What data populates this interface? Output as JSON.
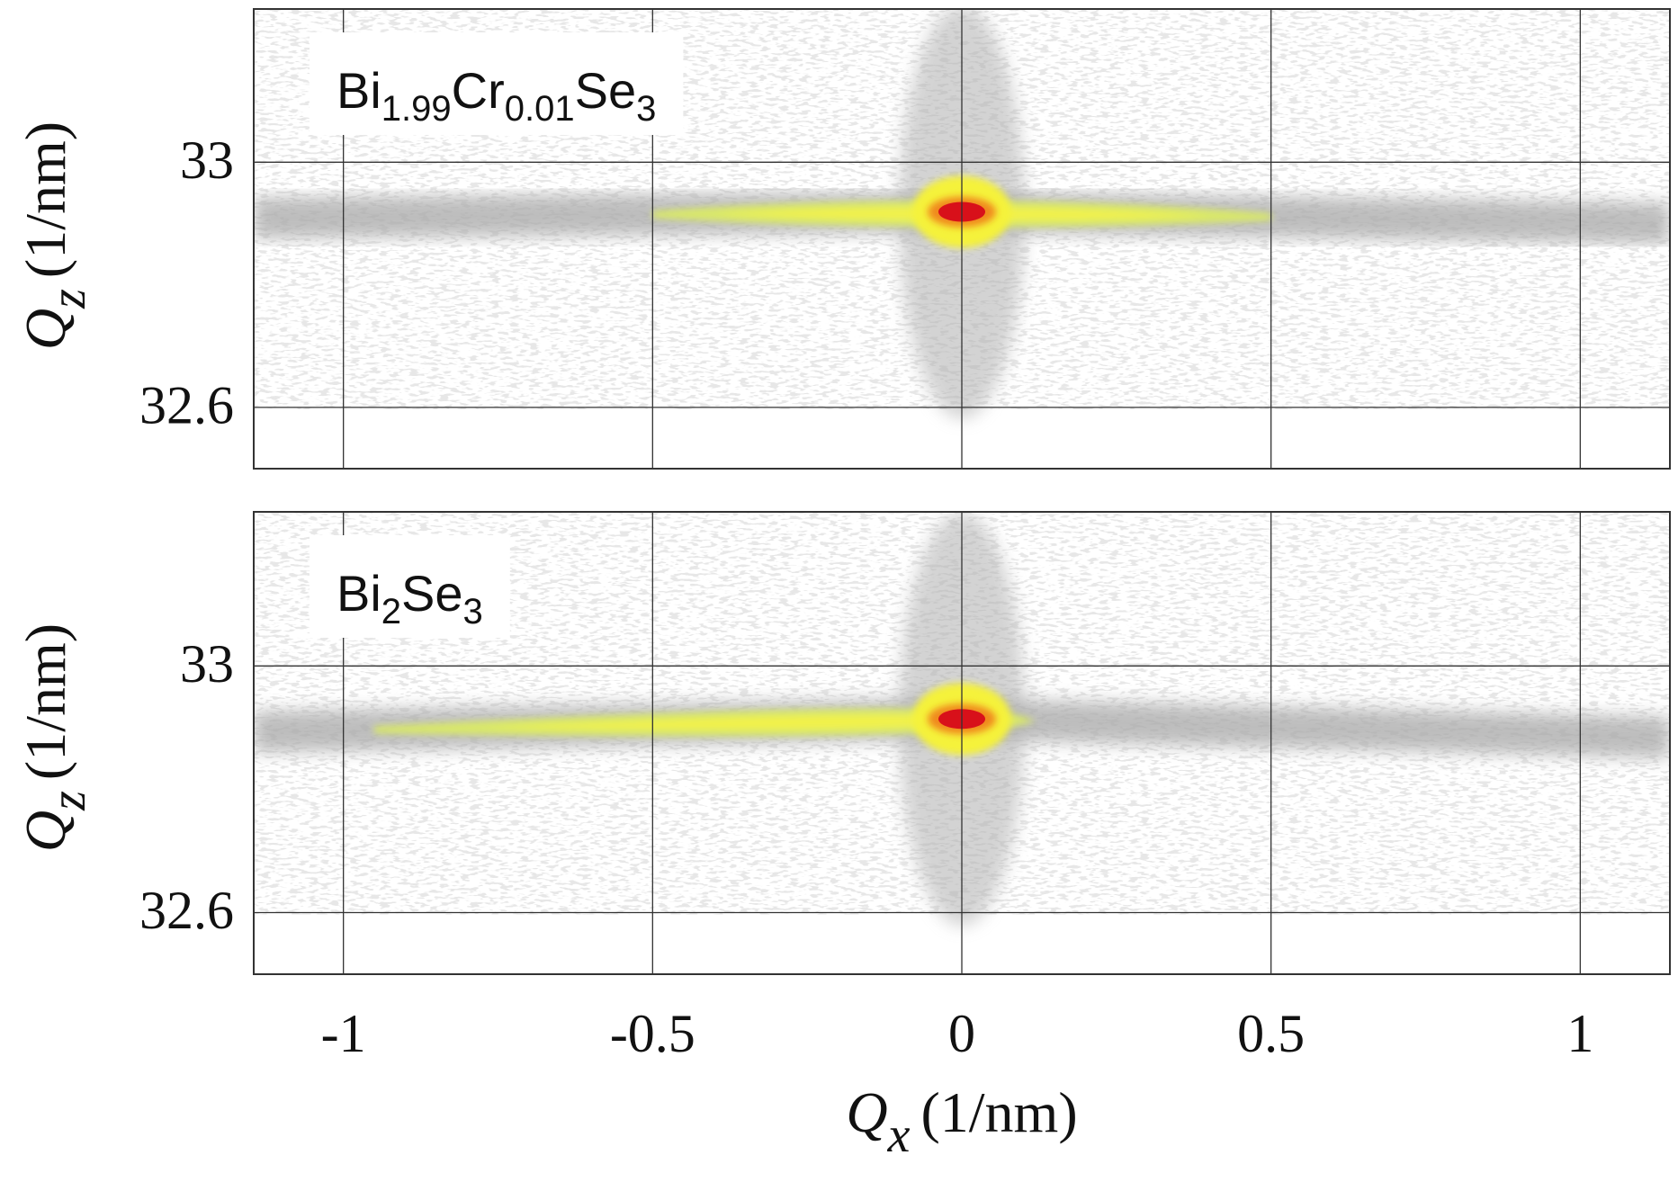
{
  "chart_data": [
    {
      "type": "rsm",
      "label_parts": [
        "Bi",
        "1.99",
        "Cr",
        "0.01",
        "Se",
        "3"
      ],
      "ylabel": {
        "symbol": "Q",
        "subscript": "z",
        "unit": "(1/nm)"
      },
      "xlim": [
        -1.145,
        1.145
      ],
      "ylim": [
        32.5,
        33.25
      ],
      "xticks": [
        -1,
        -0.5,
        0,
        0.5,
        1
      ],
      "yticks": [
        32.6,
        33
      ],
      "grid": true,
      "peak": {
        "qx": 0,
        "qz": 32.919
      },
      "streak": {
        "qx": [
          -0.5,
          0.5
        ]
      },
      "ridge": {
        "qx": [
          -1.145,
          0,
          1.145
        ],
        "qz": [
          32.909,
          32.919,
          32.9
        ]
      }
    },
    {
      "type": "rsm",
      "label_parts": [
        "Bi",
        "2",
        "Se",
        "3"
      ],
      "ylabel": {
        "symbol": "Q",
        "subscript": "z",
        "unit": "(1/nm)"
      },
      "xlabel": {
        "symbol": "Q",
        "subscript": "x",
        "unit": "(1/nm)"
      },
      "xlim": [
        -1.145,
        1.145
      ],
      "ylim": [
        32.5,
        33.25
      ],
      "xticks": [
        -1,
        -0.5,
        0,
        0.5,
        1
      ],
      "yticks": [
        32.6,
        33
      ],
      "grid": true,
      "peak": {
        "qx": 0,
        "qz": 32.914
      },
      "streak": {
        "qx": [
          -0.95,
          0.1
        ]
      },
      "ridge": {
        "qx": [
          -1.145,
          0,
          1.145
        ],
        "qz": [
          32.893,
          32.914,
          32.884
        ]
      }
    }
  ]
}
